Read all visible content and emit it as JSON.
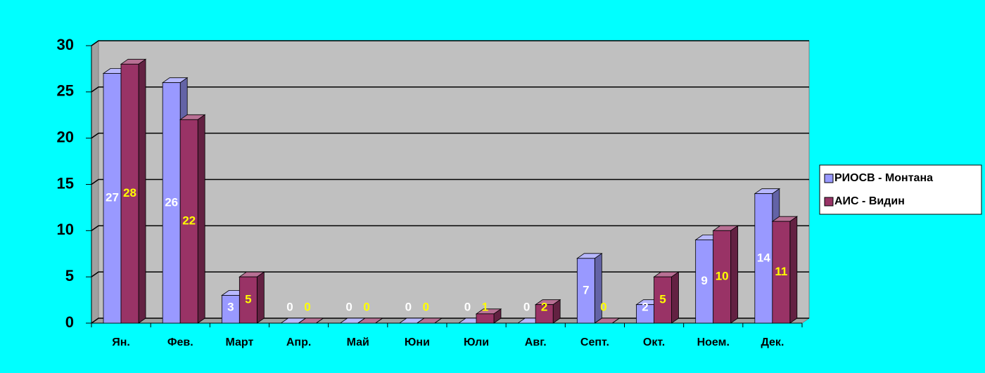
{
  "chart_data": {
    "type": "bar3d",
    "categories": [
      "Ян.",
      "Фев.",
      "Март",
      "Апр.",
      "Май",
      "Юни",
      "Юли",
      "Авг.",
      "Септ.",
      "Окт.",
      "Ноем.",
      "Дек."
    ],
    "series": [
      {
        "name": "РИОСВ - Монтана",
        "color": "#9999ff",
        "values": [
          27,
          26,
          3,
          0,
          0,
          0,
          0,
          0,
          7,
          2,
          9,
          14
        ]
      },
      {
        "name": "АИС - Видин",
        "color": "#993366",
        "values": [
          28,
          22,
          5,
          0,
          0,
          0,
          1,
          2,
          0,
          5,
          10,
          11
        ]
      }
    ],
    "ylim": [
      0,
      30
    ],
    "yticks": [
      0,
      5,
      10,
      15,
      20,
      25,
      30
    ],
    "grid": true,
    "legend": "right"
  }
}
